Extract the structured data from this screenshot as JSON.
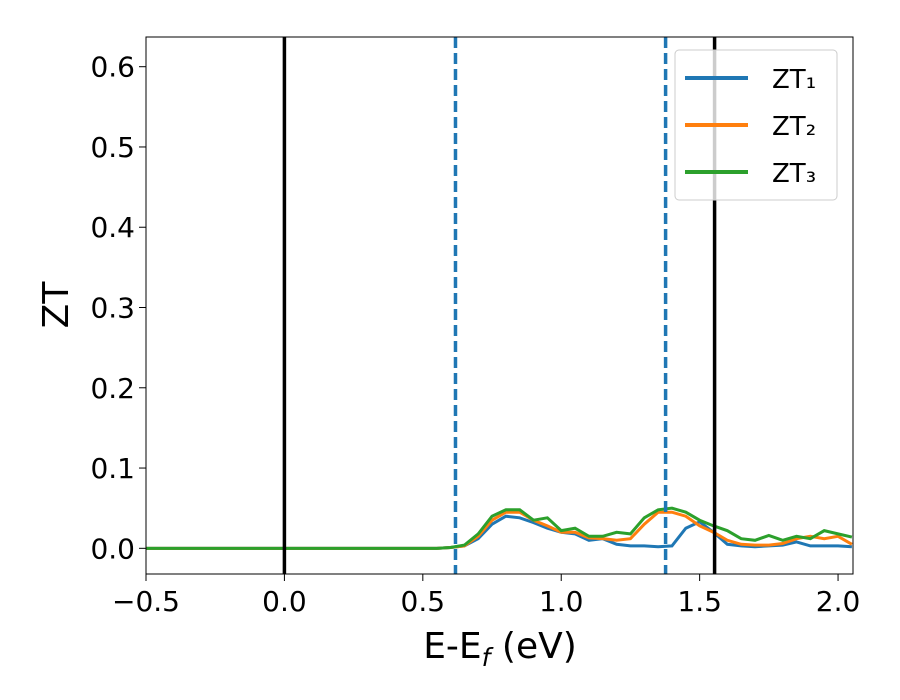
{
  "chart_data": {
    "type": "line",
    "x_label": "E-E",
    "x_label_sub": "f",
    "x_label_unit": " (eV)",
    "y_label": "ZT",
    "x": [
      -0.5,
      0.5,
      0.55,
      0.6,
      0.65,
      0.7,
      0.75,
      0.8,
      0.85,
      0.9,
      0.95,
      1.0,
      1.05,
      1.1,
      1.15,
      1.2,
      1.25,
      1.3,
      1.35,
      1.4,
      1.45,
      1.5,
      1.55,
      1.6,
      1.65,
      1.7,
      1.75,
      1.8,
      1.85,
      1.9,
      1.95,
      2.0,
      2.05
    ],
    "series": [
      {
        "name": "ZT₁",
        "color": "#1f77b4",
        "values": [
          0,
          0,
          0,
          0.001,
          0.003,
          0.012,
          0.03,
          0.04,
          0.038,
          0.032,
          0.025,
          0.02,
          0.018,
          0.01,
          0.012,
          0.005,
          0.003,
          0.003,
          0.002,
          0.003,
          0.025,
          0.033,
          0.02,
          0.005,
          0.003,
          0.002,
          0.003,
          0.004,
          0.008,
          0.003,
          0.003,
          0.003,
          0.002
        ]
      },
      {
        "name": "ZT₂",
        "color": "#ff7f0e",
        "values": [
          0,
          0,
          0,
          0.001,
          0.003,
          0.015,
          0.035,
          0.045,
          0.045,
          0.035,
          0.028,
          0.02,
          0.02,
          0.013,
          0.012,
          0.01,
          0.012,
          0.03,
          0.045,
          0.045,
          0.04,
          0.028,
          0.02,
          0.01,
          0.005,
          0.004,
          0.004,
          0.006,
          0.012,
          0.015,
          0.012,
          0.015,
          0.005
        ]
      },
      {
        "name": "ZT₃",
        "color": "#2ca02c",
        "values": [
          0,
          0,
          0,
          0.001,
          0.004,
          0.018,
          0.04,
          0.048,
          0.048,
          0.035,
          0.038,
          0.022,
          0.025,
          0.015,
          0.015,
          0.02,
          0.018,
          0.038,
          0.048,
          0.05,
          0.045,
          0.035,
          0.028,
          0.022,
          0.012,
          0.01,
          0.016,
          0.01,
          0.015,
          0.012,
          0.022,
          0.018,
          0.014
        ]
      }
    ],
    "vlines": [
      {
        "x": 0,
        "color": "#000000",
        "style": "solid"
      },
      {
        "x": 0.618,
        "color": "#1f77b4",
        "style": "dashed"
      },
      {
        "x": 1.377,
        "color": "#1f77b4",
        "style": "dashed"
      },
      {
        "x": 1.554,
        "color": "#000000",
        "style": "solid"
      }
    ],
    "xlim": [
      -0.5,
      2.054
    ],
    "ylim": [
      -0.032,
      0.637
    ],
    "xticks": [
      {
        "value": -0.5,
        "label": "−0.5"
      },
      {
        "value": 0,
        "label": "0.0"
      },
      0.5,
      {
        "value": 1,
        "label": "1.0"
      },
      1.5,
      {
        "value": 2,
        "label": "2.0"
      }
    ],
    "yticks": [
      {
        "value": 0,
        "label": "0.0"
      },
      0.1,
      0.2,
      0.3,
      0.4,
      0.5,
      0.6
    ],
    "legend": "upper right",
    "grid": false
  }
}
